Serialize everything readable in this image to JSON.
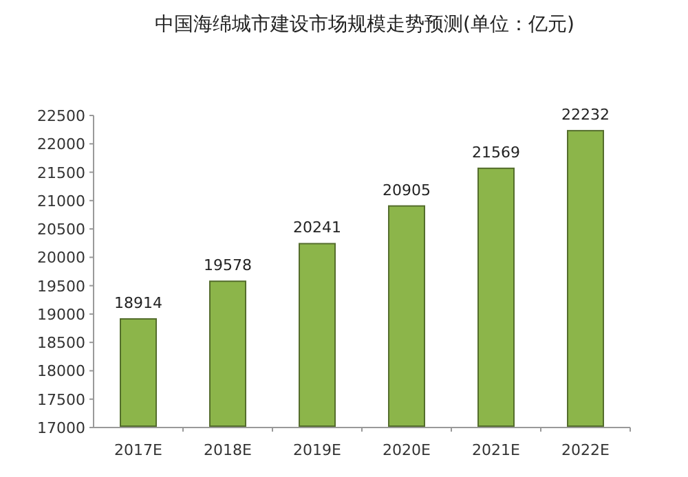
{
  "chart_data": {
    "type": "bar",
    "title": "中国海绵城市建设市场规模走势预测(单位：亿元)",
    "categories": [
      "2017E",
      "2018E",
      "2019E",
      "2020E",
      "2021E",
      "2022E"
    ],
    "values": [
      18914,
      19578,
      20241,
      20905,
      21569,
      22232
    ],
    "color": "#8cb54a",
    "ylim": [
      17000,
      22500
    ],
    "yticks": [
      17000,
      17500,
      18000,
      18500,
      19000,
      19500,
      20000,
      20500,
      21000,
      21500,
      22000,
      22500
    ],
    "data_labels": true
  }
}
